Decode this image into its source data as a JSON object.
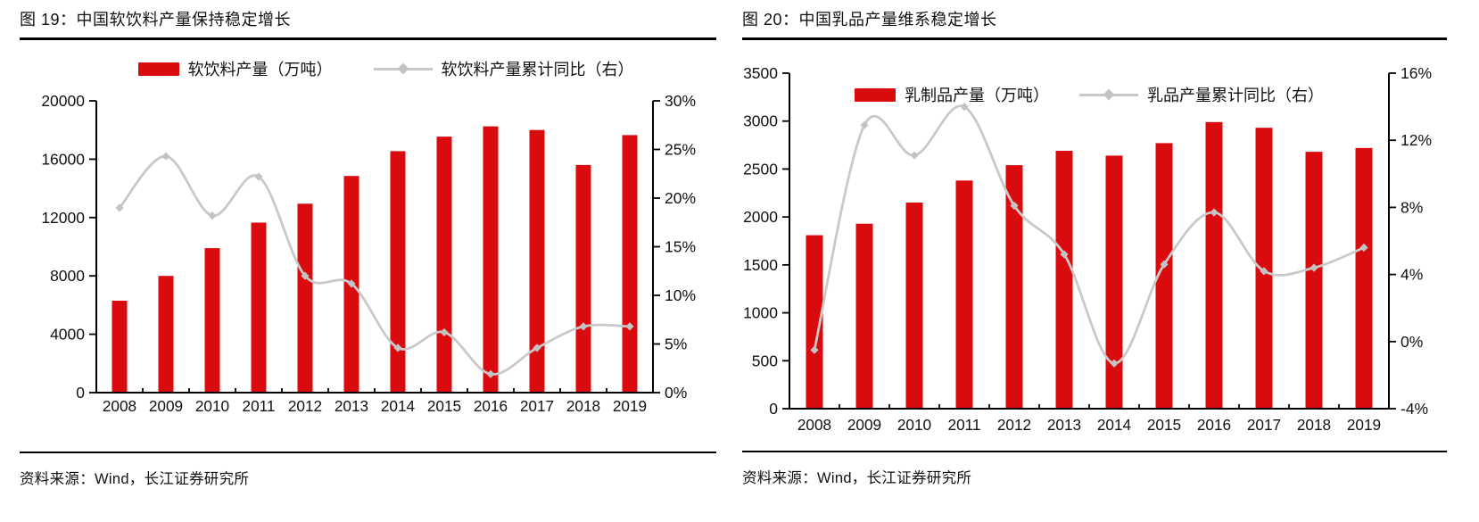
{
  "colors": {
    "bar_red": "#da0b0f",
    "line_gray": "#c9c9c9",
    "marker_gray": "#c3c3c3",
    "axis_black": "#000000",
    "text_black": "#111111"
  },
  "figures": [
    {
      "source": "资料来源：Wind，长江证券研究所"
    },
    {
      "source": "资料来源：Wind，长江证券研究所"
    }
  ],
  "chart_data": [
    {
      "type": "bar+line",
      "title": "图 19：中国软饮料产量保持稳定增长",
      "categories": [
        "2008",
        "2009",
        "2010",
        "2011",
        "2012",
        "2013",
        "2014",
        "2015",
        "2016",
        "2017",
        "2018",
        "2019"
      ],
      "series": [
        {
          "name": "软饮料产量（万吨）",
          "type": "bar",
          "axis": "left",
          "color": "#da0b0f",
          "values": [
            6300,
            8000,
            9900,
            11650,
            12950,
            14850,
            16550,
            17550,
            18250,
            18000,
            15600,
            17650
          ]
        },
        {
          "name": "软饮料产量累计同比（右）",
          "type": "line",
          "axis": "right",
          "color": "#c9c9c9",
          "values": [
            19.0,
            24.3,
            18.2,
            22.2,
            12.0,
            11.2,
            4.6,
            6.2,
            1.9,
            4.6,
            6.8,
            6.8
          ]
        }
      ],
      "left_axis": {
        "min": 0,
        "max": 20000,
        "step": 4000,
        "format": "number"
      },
      "right_axis": {
        "min": 0,
        "max": 30,
        "step": 5,
        "format": "percent"
      },
      "legend_position": "top-outside-center",
      "grid": false
    },
    {
      "type": "bar+line",
      "title": "图 20：中国乳品产量维系稳定增长",
      "categories": [
        "2008",
        "2009",
        "2010",
        "2011",
        "2012",
        "2013",
        "2014",
        "2015",
        "2016",
        "2017",
        "2018",
        "2019"
      ],
      "series": [
        {
          "name": "乳制品产量（万吨）",
          "type": "bar",
          "axis": "left",
          "color": "#da0b0f",
          "values": [
            1810,
            1930,
            2150,
            2380,
            2540,
            2690,
            2640,
            2770,
            2990,
            2930,
            2680,
            2720
          ]
        },
        {
          "name": "乳品产量累计同比（右）",
          "type": "line",
          "axis": "right",
          "color": "#c9c9c9",
          "values": [
            -0.5,
            12.9,
            11.1,
            14.0,
            8.1,
            5.2,
            -1.3,
            4.6,
            7.7,
            4.2,
            4.4,
            5.6
          ]
        }
      ],
      "left_axis": {
        "min": 0,
        "max": 3500,
        "step": 500,
        "format": "number"
      },
      "right_axis": {
        "min": -4,
        "max": 16,
        "step": 4,
        "format": "percent"
      },
      "legend_position": "top-inside-center",
      "grid": false
    }
  ]
}
